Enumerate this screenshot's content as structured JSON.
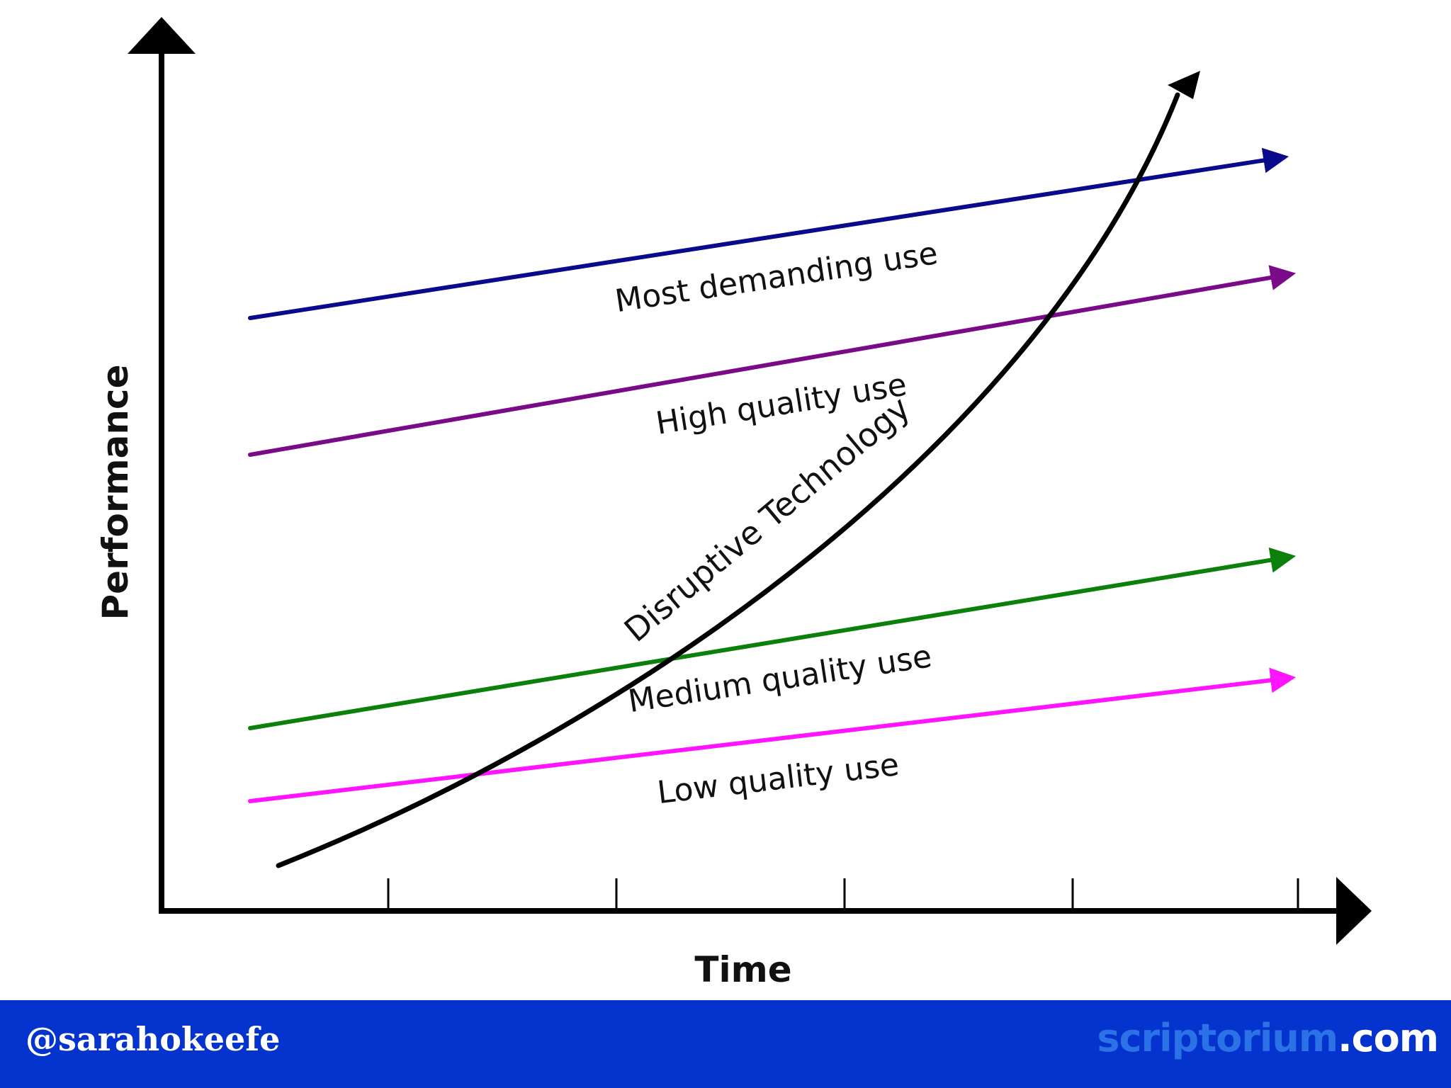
{
  "diagram": {
    "y_axis_label": "Performance",
    "x_axis_label": "Time",
    "lines": [
      {
        "id": "most-demanding",
        "label": "Most demanding use",
        "color": "#0a0a8c"
      },
      {
        "id": "high-quality",
        "label": "High quality use",
        "color": "#7b0a88"
      },
      {
        "id": "medium-quality",
        "label": "Medium quality use",
        "color": "#0b800b"
      },
      {
        "id": "low-quality",
        "label": "Low quality use",
        "color": "#ff14ff"
      }
    ],
    "curve": {
      "label": "Disruptive Technology",
      "color": "#000000"
    },
    "x_ticks": 5
  },
  "footer": {
    "handle": "@sarahokeefe",
    "site_name": "scriptorium",
    "site_tld": ".com",
    "background": "#0433cd"
  }
}
